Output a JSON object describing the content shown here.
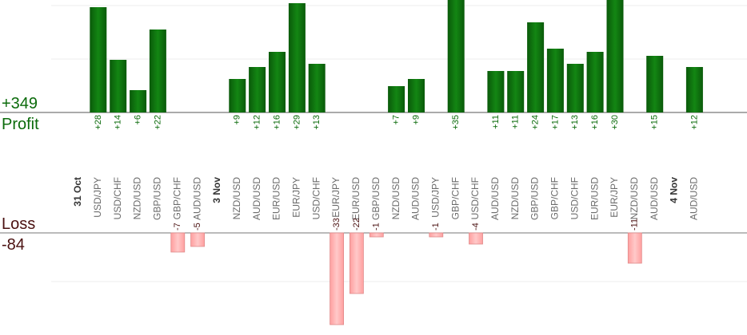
{
  "summary": {
    "profit_total": "+349",
    "profit_label": "Profit",
    "loss_label": "Loss",
    "loss_total": "-84"
  },
  "colors": {
    "profit_bar_dark": "#0a5a0a",
    "profit_bar_light": "#138613",
    "loss_bar": "#ffb6b6",
    "loss_bar_border": "#e08a8a",
    "profit_text": "#0b6b0b",
    "loss_text": "#4a1010",
    "pair_text": "#6b6b6b",
    "date_text": "#333333",
    "grid": "#ececec",
    "baseline": "#555555"
  },
  "chart_data": {
    "type": "bar",
    "grid": true,
    "profit_ylim": [
      0,
      28
    ],
    "loss_ylim": [
      0,
      -22
    ],
    "columns": [
      {
        "kind": "date",
        "label": "31 Oct"
      },
      {
        "kind": "trade",
        "pair": "USD/JPY",
        "value": 28
      },
      {
        "kind": "trade",
        "pair": "USD/CHF",
        "value": 14
      },
      {
        "kind": "trade",
        "pair": "NZD/USD",
        "value": 6
      },
      {
        "kind": "trade",
        "pair": "GBP/USD",
        "value": 22
      },
      {
        "kind": "trade",
        "pair": "GBP/CHF",
        "value": -7
      },
      {
        "kind": "trade",
        "pair": "AUD/USD",
        "value": -5
      },
      {
        "kind": "date",
        "label": "3 Nov"
      },
      {
        "kind": "trade",
        "pair": "NZD/USD",
        "value": 9
      },
      {
        "kind": "trade",
        "pair": "AUD/USD",
        "value": 12
      },
      {
        "kind": "trade",
        "pair": "EUR/USD",
        "value": 16
      },
      {
        "kind": "trade",
        "pair": "EUR/JPY",
        "value": 29
      },
      {
        "kind": "trade",
        "pair": "USD/CHF",
        "value": 13
      },
      {
        "kind": "trade",
        "pair": "EUR/JPY",
        "value": -33
      },
      {
        "kind": "trade",
        "pair": "EUR/USD",
        "value": -22
      },
      {
        "kind": "trade",
        "pair": "GBP/USD",
        "value": -1
      },
      {
        "kind": "trade",
        "pair": "NZD/USD",
        "value": 7
      },
      {
        "kind": "trade",
        "pair": "AUD/USD",
        "value": 9
      },
      {
        "kind": "trade",
        "pair": "USD/JPY",
        "value": -1
      },
      {
        "kind": "trade",
        "pair": "GBP/CHF",
        "value": 35
      },
      {
        "kind": "trade",
        "pair": "USD/CHF",
        "value": -4
      },
      {
        "kind": "trade",
        "pair": "AUD/USD",
        "value": 11
      },
      {
        "kind": "trade",
        "pair": "NZD/USD",
        "value": 11
      },
      {
        "kind": "trade",
        "pair": "GBP/USD",
        "value": 24
      },
      {
        "kind": "trade",
        "pair": "GBP/CHF",
        "value": 17
      },
      {
        "kind": "trade",
        "pair": "USD/CHF",
        "value": 13
      },
      {
        "kind": "trade",
        "pair": "EUR/USD",
        "value": 16
      },
      {
        "kind": "trade",
        "pair": "EUR/JPY",
        "value": 30
      },
      {
        "kind": "trade",
        "pair": "NZD/USD",
        "value": -11
      },
      {
        "kind": "trade",
        "pair": "AUD/USD",
        "value": 15
      },
      {
        "kind": "date",
        "label": "4 Nov"
      },
      {
        "kind": "trade",
        "pair": "AUD/USD",
        "value": 12
      }
    ]
  }
}
